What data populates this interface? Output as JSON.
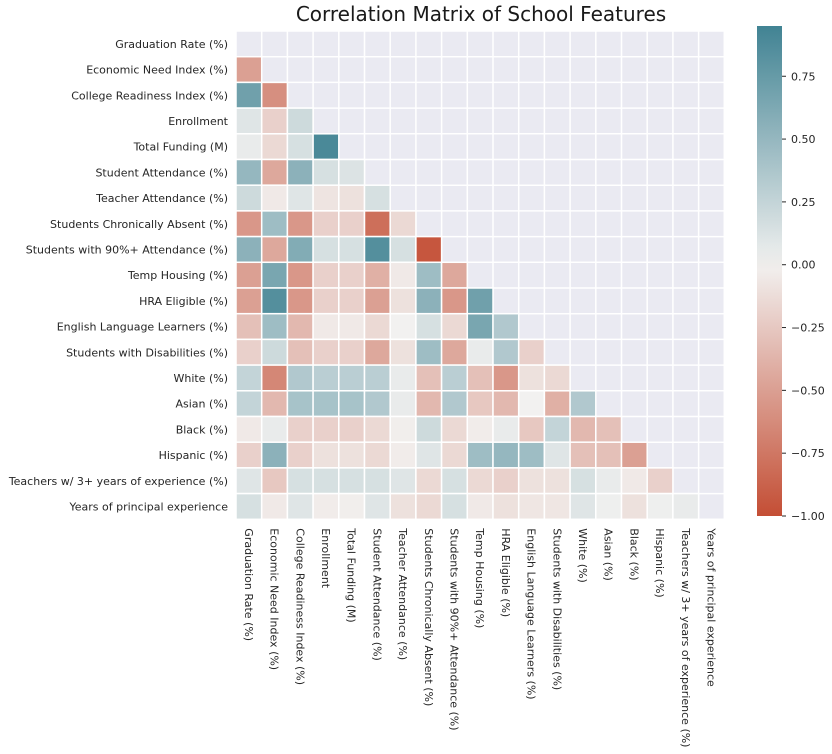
{
  "chart_data": {
    "type": "heatmap",
    "title": "Correlation Matrix of School Features",
    "features": [
      "Graduation Rate (%)",
      "Economic Need Index (%)",
      "College Readiness Index (%)",
      "Enrollment",
      "Total Funding (M)",
      "Student Attendance (%)",
      "Teacher Attendance (%)",
      "Students Chronically Absent (%)",
      "Students with 90%+ Attendance (%)",
      "Temp Housing (%)",
      "HRA Eligible (%)",
      "English Language Learners (%)",
      "Students with Disabilities (%)",
      "White (%)",
      "Asian (%)",
      "Black (%)",
      "Hispanic (%)",
      "Teachers w/ 3+ years of experience (%)",
      "Years of principal experience"
    ],
    "mask": "upper-triangle-and-diagonal",
    "lower_triangle": [
      [],
      [
        -0.5
      ],
      [
        0.7,
        -0.6
      ],
      [
        0.1,
        -0.2,
        0.2
      ],
      [
        0.05,
        -0.15,
        0.15,
        0.9
      ],
      [
        0.5,
        -0.45,
        0.55,
        0.15,
        0.12
      ],
      [
        0.2,
        -0.05,
        0.1,
        -0.08,
        -0.1,
        0.15
      ],
      [
        -0.55,
        0.45,
        -0.55,
        -0.2,
        -0.2,
        -0.8,
        -0.15
      ],
      [
        0.55,
        -0.45,
        0.6,
        0.15,
        0.15,
        0.85,
        0.15,
        -0.95
      ],
      [
        -0.5,
        0.65,
        -0.55,
        -0.2,
        -0.2,
        -0.4,
        -0.05,
        0.45,
        -0.45
      ],
      [
        -0.5,
        0.85,
        -0.55,
        -0.2,
        -0.2,
        -0.5,
        -0.1,
        0.55,
        -0.55,
        0.7
      ],
      [
        -0.3,
        0.45,
        -0.35,
        -0.05,
        -0.05,
        -0.15,
        0.0,
        0.15,
        -0.15,
        0.65,
        0.35
      ],
      [
        -0.2,
        0.2,
        -0.3,
        -0.2,
        -0.2,
        -0.45,
        -0.1,
        0.45,
        -0.45,
        0.05,
        0.35,
        -0.2
      ],
      [
        0.25,
        -0.65,
        0.35,
        0.3,
        0.3,
        0.3,
        0.05,
        -0.3,
        0.3,
        -0.3,
        -0.55,
        -0.1,
        -0.15
      ],
      [
        0.25,
        -0.35,
        0.4,
        0.4,
        0.4,
        0.35,
        0.05,
        -0.35,
        0.35,
        -0.25,
        -0.35,
        0.0,
        -0.4,
        0.35
      ],
      [
        -0.05,
        0.05,
        -0.2,
        -0.2,
        -0.2,
        -0.15,
        -0.02,
        0.2,
        -0.15,
        -0.03,
        0.05,
        -0.25,
        0.25,
        -0.35,
        -0.3
      ],
      [
        -0.2,
        0.55,
        -0.2,
        -0.1,
        -0.1,
        -0.15,
        -0.03,
        0.1,
        -0.15,
        0.45,
        0.5,
        0.45,
        0.1,
        -0.3,
        -0.3,
        -0.5
      ],
      [
        0.1,
        -0.25,
        0.15,
        0.15,
        0.15,
        0.15,
        0.1,
        -0.15,
        0.15,
        -0.15,
        -0.2,
        -0.1,
        -0.1,
        0.15,
        0.05,
        -0.05,
        -0.2
      ],
      [
        0.15,
        -0.05,
        0.1,
        -0.03,
        -0.02,
        0.1,
        -0.1,
        -0.15,
        0.15,
        -0.05,
        -0.1,
        -0.07,
        -0.07,
        0.1,
        0.02,
        -0.1,
        0.02,
        0.05
      ]
    ],
    "vmin": -1.0,
    "vmax": 0.95,
    "colorbar_ticks": [
      0.75,
      0.5,
      0.25,
      0.0,
      -0.25,
      -0.5,
      -0.75,
      -1.0
    ],
    "colorbar_tick_labels": [
      "0.75",
      "0.50",
      "0.25",
      "0.00",
      "−0.25",
      "−0.50",
      "−0.75",
      "−1.00"
    ],
    "colors": {
      "negative": "#c44e35",
      "center": "#f2f1f0",
      "positive": "#418393",
      "masked_background": "#eaeaf2",
      "cell_border": "#ffffff"
    }
  }
}
